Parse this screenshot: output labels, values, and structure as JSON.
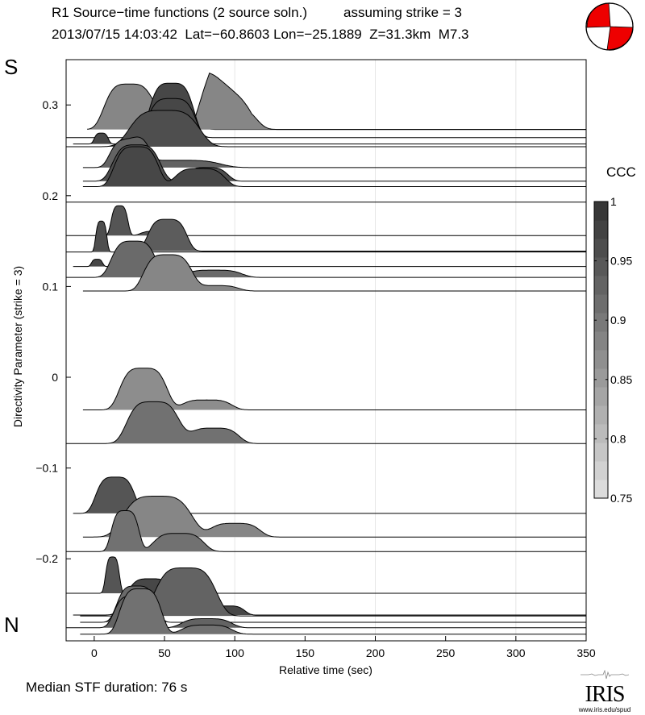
{
  "header": {
    "title": "R1 Source−time functions (2 source soln.)",
    "strike_note": "assuming strike = 3",
    "event_line": "2013/07/15 14:03:42  Lat=−60.8603 Lon=−25.1889  Z=31.3km  M7.3"
  },
  "labels": {
    "south": "S",
    "north": "N",
    "median": "Median STF duration: 76 s",
    "colorbar_title": "CCC"
  },
  "logo": {
    "text": "IRIS",
    "url": "www.iris.edu/spud"
  },
  "beachball": {
    "color": "#ee0000",
    "icon": "focal-mechanism-beachball"
  },
  "chart_data": {
    "type": "area",
    "title": "R1 Source-time functions (2 source soln.)",
    "xlabel": "Relative time (sec)",
    "ylabel": "Directivity Parameter (strike = 3)",
    "xlim": [
      -20,
      350
    ],
    "ylim": [
      -0.285,
      0.35
    ],
    "xticks": [
      0,
      50,
      100,
      150,
      200,
      250,
      300,
      350
    ],
    "yticks": [
      0.3,
      0.2,
      0.1,
      0,
      -0.1,
      -0.2
    ],
    "ytick_labels": [
      "0.3",
      "0.2",
      "0.1",
      "0",
      "−0.1",
      "−0.2"
    ],
    "grid": "vertical at 100, 200, 300",
    "colorbar": {
      "label": "CCC",
      "range": [
        0.75,
        1.0
      ],
      "ticks": [
        1,
        0.95,
        0.9,
        0.85,
        0.8,
        0.75
      ],
      "tick_labels": [
        "1",
        "0.95",
        "0.9",
        "0.85",
        "0.8",
        "0.75"
      ],
      "levels": 16
    },
    "series": [
      {
        "baseline": 0.273,
        "start": -5,
        "ccc": 0.88,
        "peaks": [
          [
            25,
            0.05,
            18
          ],
          [
            60,
            0.015,
            15
          ]
        ],
        "end": 80
      },
      {
        "baseline": 0.273,
        "start": 30,
        "ccc": 0.88,
        "peaks": [
          [
            82,
            0.04,
            4
          ],
          [
            95,
            0.025,
            20
          ]
        ],
        "end": 130,
        "shape": "sharp"
      },
      {
        "baseline": 0.264,
        "start": -20,
        "ccc": 0.97,
        "peaks": [
          [
            55,
            0.06,
            16
          ]
        ],
        "end": 90
      },
      {
        "baseline": 0.257,
        "start": -15,
        "ccc": 0.97,
        "peaks": [
          [
            5,
            0.012,
            5
          ],
          [
            55,
            0.05,
            18
          ]
        ],
        "end": 90
      },
      {
        "baseline": 0.254,
        "start": -20,
        "ccc": 0.96,
        "peaks": [
          [
            50,
            0.04,
            25
          ]
        ],
        "end": 100
      },
      {
        "baseline": 0.231,
        "start": -8,
        "ccc": 0.93,
        "peaks": [
          [
            25,
            0.03,
            14
          ],
          [
            60,
            0.008,
            30
          ]
        ],
        "end": 120
      },
      {
        "baseline": 0.216,
        "start": -8,
        "ccc": 0.96,
        "peaks": [
          [
            30,
            0.04,
            17
          ],
          [
            80,
            0.015,
            15
          ]
        ],
        "end": 100
      },
      {
        "baseline": 0.21,
        "start": -8,
        "ccc": 0.97,
        "peaks": [
          [
            30,
            0.044,
            16
          ],
          [
            75,
            0.02,
            18
          ]
        ],
        "end": 105
      },
      {
        "baseline": 0.193,
        "start": -20,
        "ccc": 0.96,
        "peaks": [],
        "end": 350
      },
      {
        "baseline": 0.156,
        "start": -20,
        "ccc": 0.95,
        "peaks": [
          [
            18,
            0.033,
            6
          ],
          [
            45,
            0.005,
            12
          ]
        ],
        "end": 60
      },
      {
        "baseline": 0.138,
        "start": -20,
        "ccc": 0.96,
        "peaks": [
          [
            5,
            0.034,
            4
          ]
        ],
        "end": 30
      },
      {
        "baseline": 0.139,
        "start": 20,
        "ccc": 0.94,
        "peaks": [
          [
            52,
            0.035,
            14
          ]
        ],
        "end": 95
      },
      {
        "baseline": 0.122,
        "start": -15,
        "ccc": 0.97,
        "peaks": [
          [
            2,
            0.008,
            4
          ]
        ],
        "end": 20
      },
      {
        "baseline": 0.11,
        "start": -20,
        "ccc": 0.92,
        "peaks": [
          [
            28,
            0.04,
            16
          ],
          [
            85,
            0.008,
            20
          ]
        ],
        "end": 120
      },
      {
        "baseline": 0.095,
        "start": -8,
        "ccc": 0.88,
        "peaks": [
          [
            52,
            0.04,
            17
          ],
          [
            85,
            0.006,
            18
          ]
        ],
        "end": 100
      },
      {
        "baseline": -0.036,
        "start": -8,
        "ccc": 0.87,
        "peaks": [
          [
            35,
            0.046,
            17
          ],
          [
            80,
            0.011,
            18
          ]
        ],
        "end": 110
      },
      {
        "baseline": -0.073,
        "start": -20,
        "ccc": 0.91,
        "peaks": [
          [
            42,
            0.046,
            19
          ],
          [
            85,
            0.017,
            18
          ]
        ],
        "end": 110
      },
      {
        "baseline": -0.15,
        "start": -15,
        "ccc": 0.95,
        "peaks": [
          [
            15,
            0.04,
            14
          ]
        ],
        "end": 60
      },
      {
        "baseline": -0.176,
        "start": -8,
        "ccc": 0.88,
        "peaks": [
          [
            45,
            0.045,
            25
          ],
          [
            100,
            0.015,
            18
          ]
        ],
        "end": 125
      },
      {
        "baseline": -0.192,
        "start": -20,
        "ccc": 0.91,
        "peaks": [
          [
            22,
            0.045,
            10
          ],
          [
            60,
            0.02,
            18
          ]
        ],
        "end": 100
      },
      {
        "baseline": -0.238,
        "start": -20,
        "ccc": 0.95,
        "peaks": [
          [
            13,
            0.04,
            5
          ]
        ],
        "end": 30
      },
      {
        "baseline": -0.262,
        "start": -15,
        "ccc": 0.97,
        "peaks": [
          [
            40,
            0.04,
            18
          ],
          [
            95,
            0.01,
            12
          ]
        ],
        "end": 115
      },
      {
        "baseline": -0.263,
        "start": -10,
        "ccc": 0.93,
        "peaks": [
          [
            65,
            0.053,
            22
          ]
        ],
        "end": 110
      },
      {
        "baseline": -0.27,
        "start": -10,
        "ccc": 0.92,
        "peaks": [
          [
            30,
            0.04,
            14
          ]
        ],
        "end": 110
      },
      {
        "baseline": -0.276,
        "start": -20,
        "ccc": 0.93,
        "peaks": [
          [
            28,
            0.035,
            14
          ],
          [
            80,
            0.01,
            18
          ]
        ],
        "end": 125
      },
      {
        "baseline": -0.283,
        "start": -10,
        "ccc": 0.91,
        "peaks": [
          [
            33,
            0.05,
            15
          ],
          [
            80,
            0.01,
            18
          ]
        ],
        "end": 105
      }
    ]
  }
}
